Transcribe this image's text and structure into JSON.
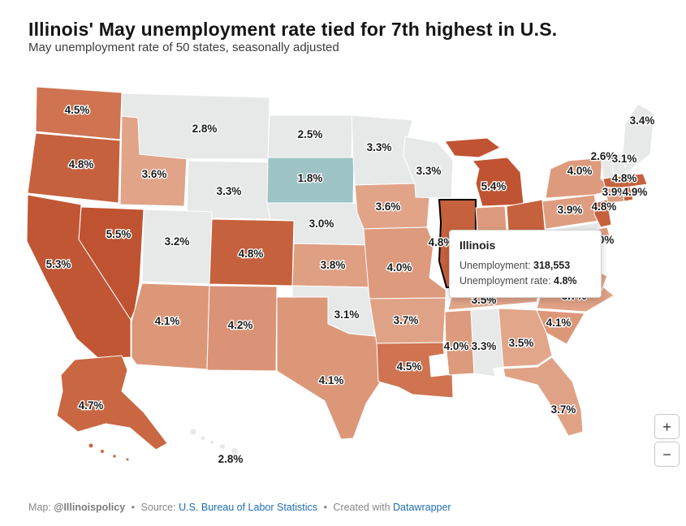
{
  "header": {
    "title": "Illinois' May unemployment rate tied for 7th highest in U.S.",
    "subtitle": "May unemployment rate of 50 states, seasonally adjusted"
  },
  "tooltip": {
    "state": "Illinois",
    "unemployment_label": "Unemployment: ",
    "unemployment_value": "318,553",
    "rate_label": "Unemployment rate: ",
    "rate_value": "4.8%"
  },
  "zoom": {
    "in_label": "+",
    "out_label": "−"
  },
  "footer": {
    "map_label": "Map: ",
    "map_credit": "@Illinoispolicy",
    "sep": "•",
    "source_label": "Source: ",
    "source_link": "U.S. Bureau of Labor Statistics",
    "created_label": "Created with ",
    "created_link": "Datawrapper"
  },
  "colors": {
    "highlight_stroke": "#000000",
    "lowest_teal": "#9ec4c6",
    "neutral_gray": "#e7e9e9",
    "link_blue": "#1f6db2"
  },
  "map": {
    "states": [
      {
        "id": "WA",
        "name": "Washington",
        "label": "4.5%",
        "fill": "#cf7350"
      },
      {
        "id": "OR",
        "name": "Oregon",
        "label": "4.8%",
        "fill": "#c6613d"
      },
      {
        "id": "CA",
        "name": "California",
        "label": "5.3%",
        "fill": "#c15634"
      },
      {
        "id": "NV",
        "name": "Nevada",
        "label": "5.5%",
        "fill": "#bf5230"
      },
      {
        "id": "ID",
        "name": "Idaho",
        "label": "3.6%",
        "fill": "#e1a489"
      },
      {
        "id": "MT",
        "name": "Montana",
        "label": "2.8%",
        "fill": "#e7e9e9"
      },
      {
        "id": "WY",
        "name": "Wyoming",
        "label": "3.3%",
        "fill": "#e7e9e9"
      },
      {
        "id": "UT",
        "name": "Utah",
        "label": "3.2%",
        "fill": "#e7e9e9"
      },
      {
        "id": "CO",
        "name": "Colorado",
        "label": "4.8%",
        "fill": "#c6613d"
      },
      {
        "id": "AZ",
        "name": "Arizona",
        "label": "4.1%",
        "fill": "#dc9779"
      },
      {
        "id": "NM",
        "name": "New Mexico",
        "label": "4.2%",
        "fill": "#da9376"
      },
      {
        "id": "ND",
        "name": "North Dakota",
        "label": "2.5%",
        "fill": "#e7e9e9"
      },
      {
        "id": "SD",
        "name": "South Dakota",
        "label": "1.8%",
        "fill": "#9ec4c6"
      },
      {
        "id": "NE",
        "name": "Nebraska",
        "label": "3.0%",
        "fill": "#e7e9e9"
      },
      {
        "id": "KS",
        "name": "Kansas",
        "label": "3.8%",
        "fill": "#df9f82"
      },
      {
        "id": "OK",
        "name": "Oklahoma",
        "label": "3.1%",
        "fill": "#e7e9e9"
      },
      {
        "id": "TX",
        "name": "Texas",
        "label": "4.1%",
        "fill": "#dc9779"
      },
      {
        "id": "MN",
        "name": "Minnesota",
        "label": "3.3%",
        "fill": "#e7e9e9"
      },
      {
        "id": "IA",
        "name": "Iowa",
        "label": "3.6%",
        "fill": "#e1a489"
      },
      {
        "id": "MO",
        "name": "Missouri",
        "label": "4.0%",
        "fill": "#dd9a7c"
      },
      {
        "id": "AR",
        "name": "Arkansas",
        "label": "3.7%",
        "fill": "#e0a286"
      },
      {
        "id": "LA",
        "name": "Louisiana",
        "label": "4.5%",
        "fill": "#cf7350"
      },
      {
        "id": "WI",
        "name": "Wisconsin",
        "label": "3.3%",
        "fill": "#e7e9e9"
      },
      {
        "id": "IL",
        "name": "Illinois",
        "label": "4.8%",
        "fill": "#c6613d"
      },
      {
        "id": "MI",
        "name": "Michigan",
        "label": "5.4%",
        "fill": "#c05432"
      },
      {
        "id": "IN",
        "name": "Indiana",
        "label": "",
        "fill": "#dd9a7c"
      },
      {
        "id": "OH",
        "name": "Ohio",
        "label": "",
        "fill": "#c6613d"
      },
      {
        "id": "KY",
        "name": "Kentucky",
        "label": "",
        "fill": "#cf7350"
      },
      {
        "id": "TN",
        "name": "Tennessee",
        "label": "3.5%",
        "fill": "#e2a68b"
      },
      {
        "id": "MS",
        "name": "Mississippi",
        "label": "4.0%",
        "fill": "#dd9a7c"
      },
      {
        "id": "AL",
        "name": "Alabama",
        "label": "3.3%",
        "fill": "#e7e9e9"
      },
      {
        "id": "GA",
        "name": "Georgia",
        "label": "3.5%",
        "fill": "#e2a68b"
      },
      {
        "id": "FL",
        "name": "Florida",
        "label": "3.7%",
        "fill": "#e0a286"
      },
      {
        "id": "SC",
        "name": "South Carolina",
        "label": "4.1%",
        "fill": "#dc9779"
      },
      {
        "id": "NC",
        "name": "North Carolina",
        "label": "3.7%",
        "fill": "#e0a286"
      },
      {
        "id": "VA",
        "name": "Virginia",
        "label": "",
        "fill": "#e2a68b"
      },
      {
        "id": "WV",
        "name": "West Virginia",
        "label": "",
        "fill": "#e0a286"
      },
      {
        "id": "PA",
        "name": "Pennsylvania",
        "label": "3.9%",
        "fill": "#de9d80"
      },
      {
        "id": "NY",
        "name": "New York",
        "label": "4.0%",
        "fill": "#dd9a7c"
      },
      {
        "id": "VT",
        "name": "Vermont",
        "label": "2.6%",
        "fill": "#e7e9e9"
      },
      {
        "id": "NH",
        "name": "New Hampshire",
        "label": "3.1%",
        "fill": "#e7e9e9"
      },
      {
        "id": "ME",
        "name": "Maine",
        "label": "3.4%",
        "fill": "#e7e9e9"
      },
      {
        "id": "MA",
        "name": "Massachusetts",
        "label": "4.8%",
        "fill": "#c6613d"
      },
      {
        "id": "CT",
        "name": "Connecticut",
        "label": "3.9%",
        "fill": "#de9d80"
      },
      {
        "id": "RI",
        "name": "Rhode Island",
        "label": "4.9%",
        "fill": "#c55e3b"
      },
      {
        "id": "NJ",
        "name": "New Jersey",
        "label": "4.8%",
        "fill": "#c6613d"
      },
      {
        "id": "DE",
        "name": "Delaware",
        "label": "4.0%",
        "fill": "#dd9a7c"
      },
      {
        "id": "MD",
        "name": "Maryland",
        "label": "",
        "fill": "#e7e9e9"
      },
      {
        "id": "AK",
        "name": "Alaska",
        "label": "4.7%",
        "fill": "#c96743"
      },
      {
        "id": "HI",
        "name": "Hawaii",
        "label": "2.8%",
        "fill": "#e7e9e9"
      }
    ]
  }
}
